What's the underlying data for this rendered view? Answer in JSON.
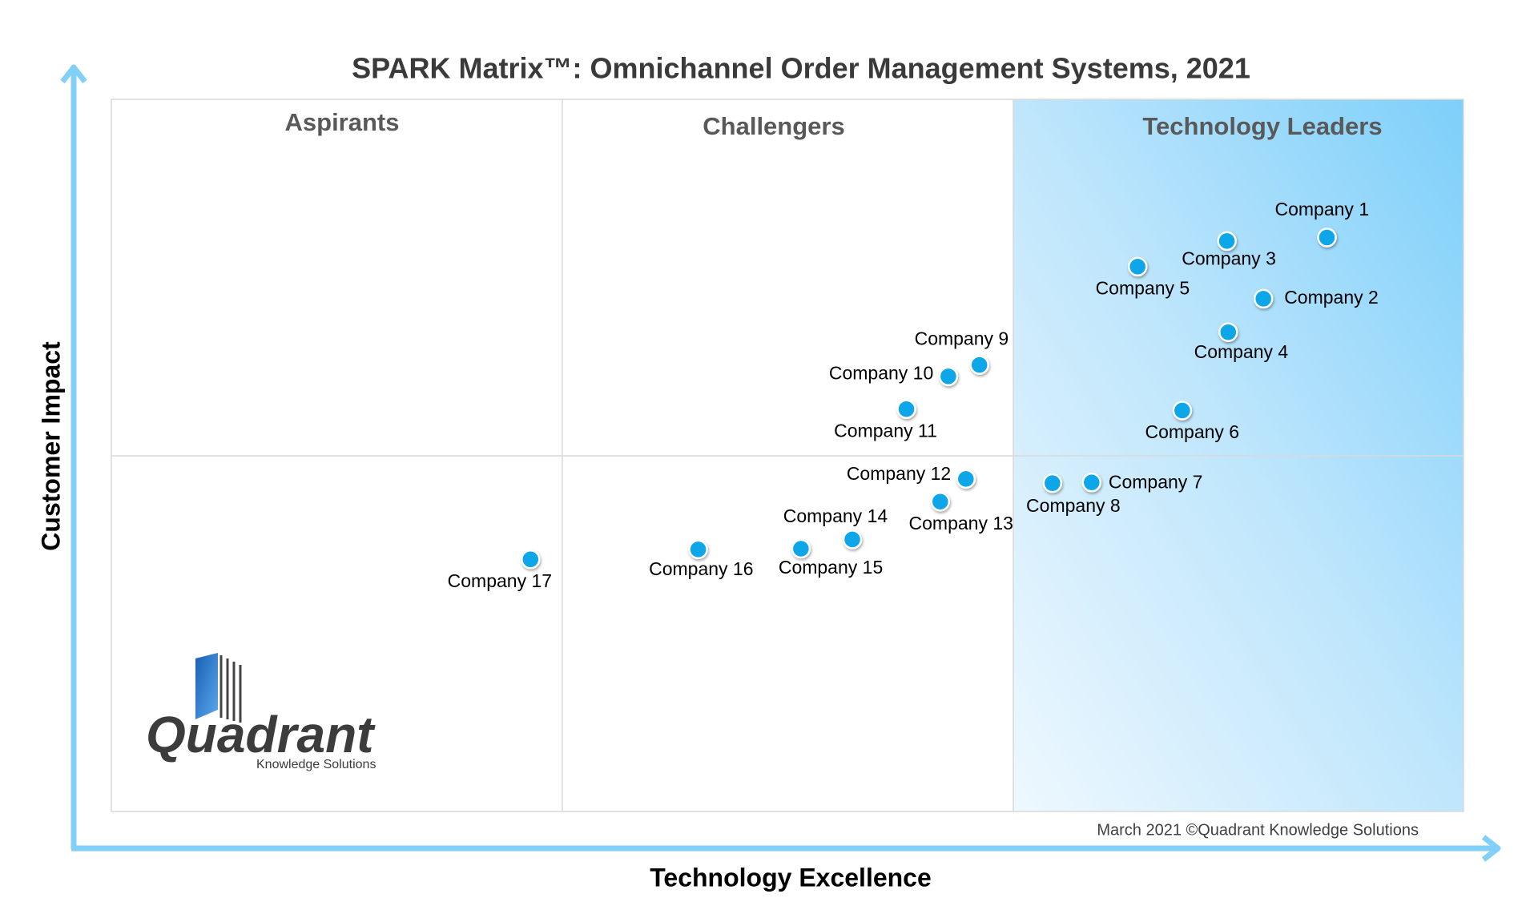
{
  "chart_data": {
    "type": "scatter",
    "title": "SPARK Matrix™: Omnichannel Order Management Systems, 2021",
    "x_label": "Technology Excellence",
    "y_label": "Customer Impact",
    "quadrants": [
      "Aspirants",
      "Challengers",
      "Technology Leaders"
    ],
    "footnote": "March 2021 ©Quadrant Knowledge Solutions",
    "logo": {
      "name": "Quadrant",
      "tagline": "Knowledge Solutions"
    },
    "xlim": [
      0,
      100
    ],
    "ylim": [
      0,
      100
    ],
    "color": "#0aa6e8",
    "point_labels": [
      "Company 1",
      "Company 2",
      "Company 3",
      "Company 4",
      "Company 5",
      "Company 6",
      "Company 7",
      "Company 8",
      "Company 9",
      "Company 10",
      "Company 11",
      "Company 12",
      "Company 13",
      "Company 14",
      "Company 15",
      "Company 16",
      "Company 17"
    ],
    "x": [
      89.9,
      85.2,
      82.5,
      82.6,
      75.9,
      79.2,
      72.5,
      69.6,
      64.2,
      61.9,
      58.8,
      63.2,
      61.3,
      54.8,
      51.0,
      43.4,
      31.0
    ],
    "y": [
      80.6,
      72.0,
      80.1,
      67.3,
      76.5,
      56.3,
      46.2,
      46.1,
      62.7,
      61.1,
      56.5,
      46.7,
      43.5,
      38.2,
      36.9,
      36.8,
      35.4
    ]
  }
}
